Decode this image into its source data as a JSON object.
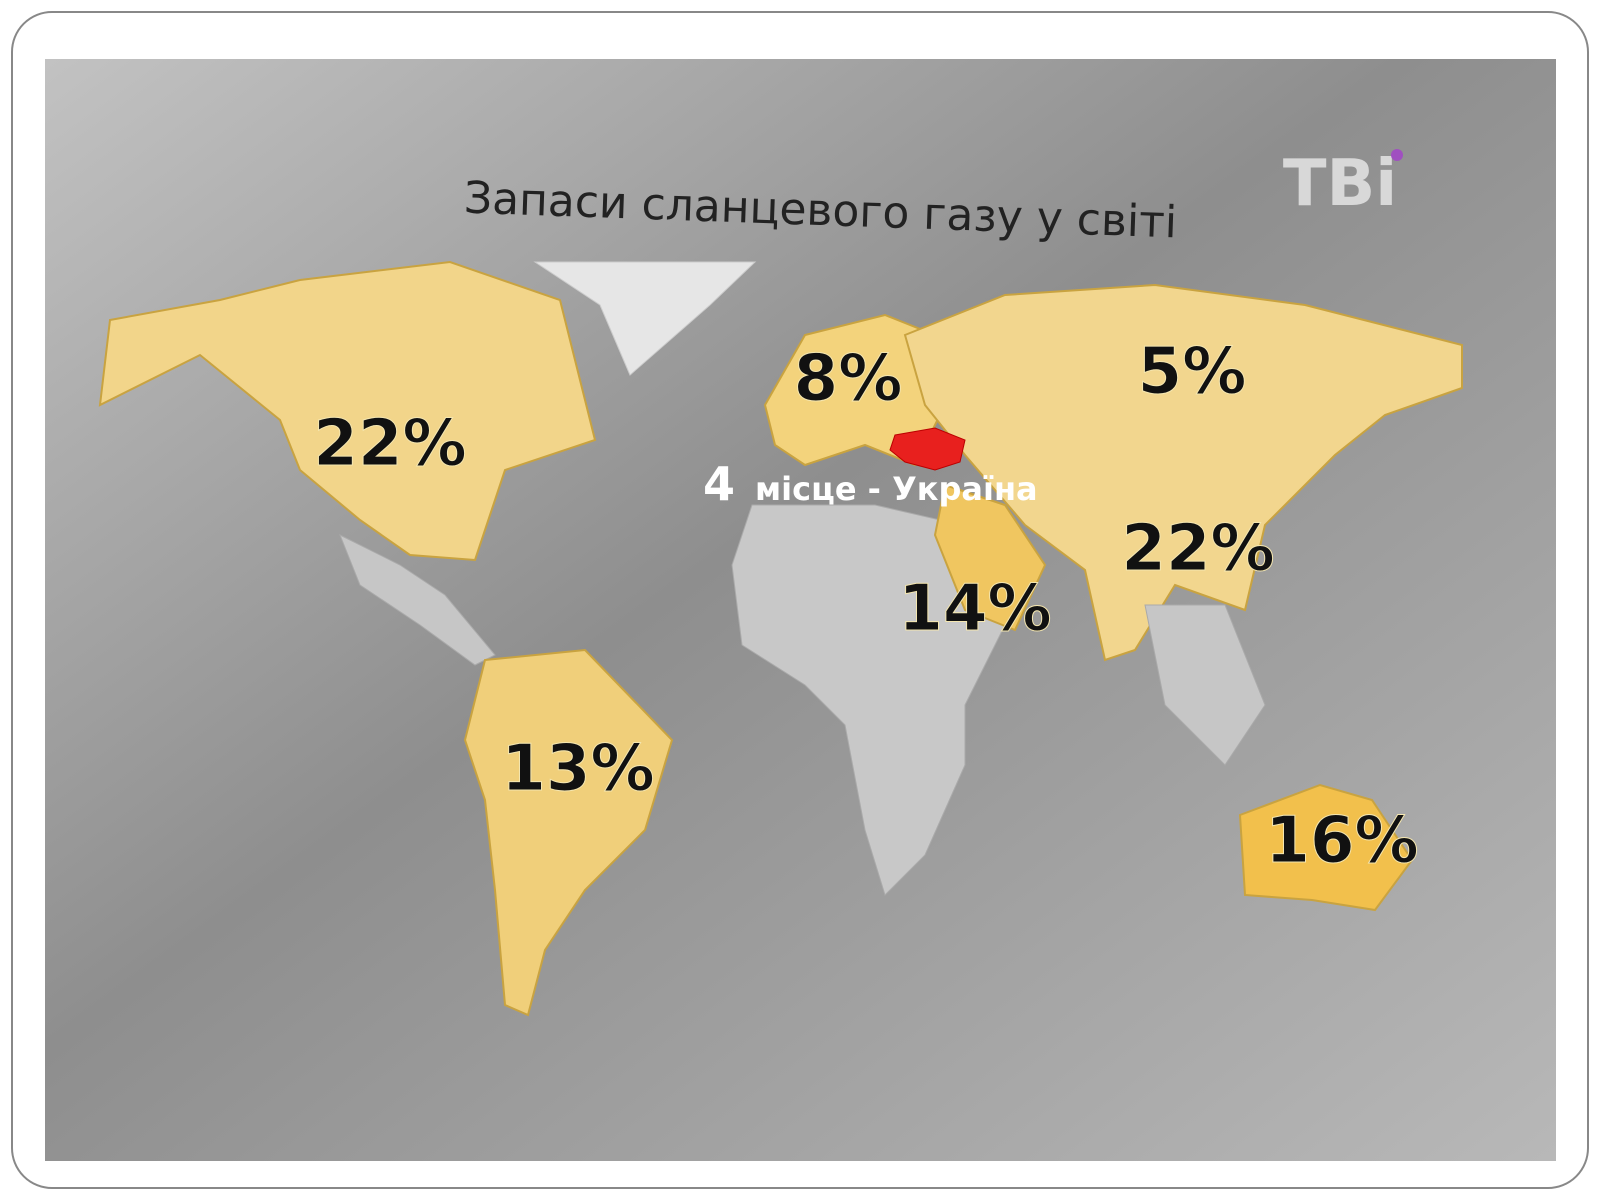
{
  "header": {
    "title": "Запаси сланцевого газу у світі",
    "logo": "ТВі"
  },
  "regions": [
    {
      "name": "north-america",
      "label": "22%"
    },
    {
      "name": "europe",
      "label": "8%"
    },
    {
      "name": "russia",
      "label": "5%"
    },
    {
      "name": "china",
      "label": "22%"
    },
    {
      "name": "middle-east",
      "label": "14%"
    },
    {
      "name": "south-america",
      "label": "13%"
    },
    {
      "name": "australia",
      "label": "16%"
    }
  ],
  "annotation": {
    "rank": "4",
    "text": "місце - Україна"
  }
}
